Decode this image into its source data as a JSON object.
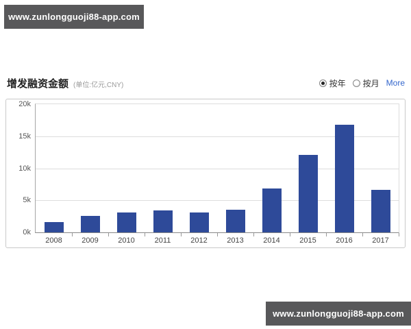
{
  "watermark": {
    "text": "www.zunlongguoji88-app.com",
    "bg_color": "#58585a",
    "text_color": "#ffffff"
  },
  "header": {
    "title": "增发融资金额",
    "unit_note": "(单位:亿元,CNY)"
  },
  "controls": {
    "mode_options": [
      {
        "label": "按年",
        "selected": true
      },
      {
        "label": "按月",
        "selected": false
      }
    ],
    "more_label": "More",
    "more_color": "#3366cc"
  },
  "chart_data": {
    "type": "bar",
    "title": "增发融资金额",
    "xlabel": "",
    "ylabel": "亿元 (CNY)",
    "categories": [
      "2008",
      "2009",
      "2010",
      "2011",
      "2012",
      "2013",
      "2014",
      "2015",
      "2016",
      "2017"
    ],
    "values": [
      1600,
      2600,
      3050,
      3400,
      3150,
      3500,
      6850,
      12100,
      16800,
      6600
    ],
    "ylim": [
      0,
      20000
    ],
    "y_ticks": [
      {
        "label": "20k",
        "value": 20000
      },
      {
        "label": "15k",
        "value": 15000
      },
      {
        "label": "10k",
        "value": 10000
      },
      {
        "label": "5k",
        "value": 5000
      },
      {
        "label": "0k",
        "value": 0
      }
    ],
    "grid": true,
    "legend_position": "none",
    "bar_color": "#2e4a99"
  }
}
